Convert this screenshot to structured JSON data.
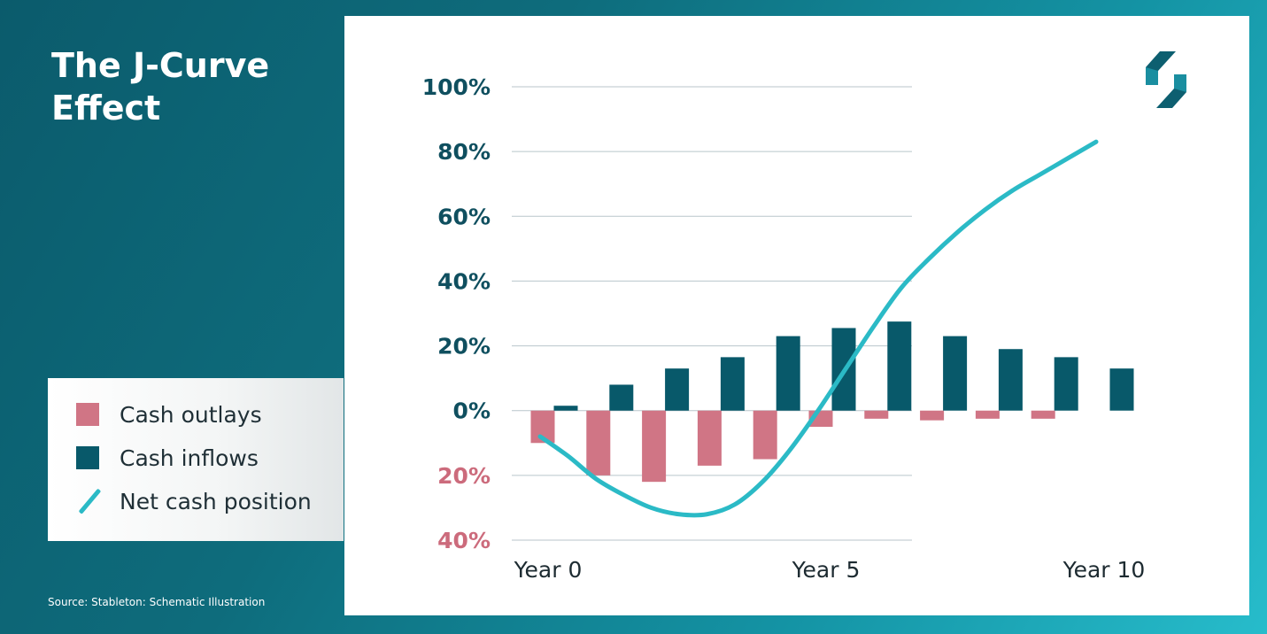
{
  "title": "The J-Curve Effect",
  "source": "Source: Stableton: Schematic Illustration",
  "logo_icon": "stableton-logo-icon",
  "colors": {
    "background_dark": "#0b5b6c",
    "background_light": "#27bccb",
    "outlays": "#d07585",
    "inflows": "#08596a",
    "net_line": "#2bbac6",
    "positive_tick": "#0f4f5f",
    "negative_tick": "#cc6b7c"
  },
  "legend": [
    {
      "label": "Cash outlays",
      "kind": "swatch",
      "color": "#d07585"
    },
    {
      "label": "Cash inflows",
      "kind": "swatch",
      "color": "#08596a"
    },
    {
      "label": "Net cash position",
      "kind": "line",
      "color": "#2bbac6"
    }
  ],
  "chart_data": {
    "type": "bar",
    "x_ticks": [
      {
        "x": 0,
        "label": "Year 0"
      },
      {
        "x": 5,
        "label": "Year 5"
      },
      {
        "x": 10,
        "label": "Year 10"
      }
    ],
    "y_ticks": [
      {
        "value": 100,
        "label": "100%"
      },
      {
        "value": 80,
        "label": "80%"
      },
      {
        "value": 60,
        "label": "60%"
      },
      {
        "value": 40,
        "label": "40%"
      },
      {
        "value": 20,
        "label": "20%"
      },
      {
        "value": 0,
        "label": "0%"
      },
      {
        "value": -20,
        "label": "20%"
      },
      {
        "value": -40,
        "label": "40%"
      }
    ],
    "ylim": [
      -40,
      100
    ],
    "xlim": [
      0,
      10
    ],
    "grid": true,
    "legend_position": "left",
    "series": [
      {
        "name": "Cash outlays",
        "kind": "bar",
        "x": [
          0,
          1,
          2,
          3,
          4,
          5,
          6,
          7,
          8,
          9
        ],
        "values": [
          -10,
          -20,
          -22,
          -17,
          -15,
          -5,
          -2.5,
          -3,
          -2.5,
          -2.5
        ]
      },
      {
        "name": "Cash inflows",
        "kind": "bar",
        "x": [
          0,
          1,
          2,
          3,
          4,
          5,
          6,
          7,
          8,
          9,
          10
        ],
        "values": [
          1.5,
          8,
          13,
          16.5,
          23,
          25.5,
          27.5,
          23,
          19,
          16.5,
          13
        ]
      },
      {
        "name": "Net cash position",
        "kind": "line",
        "x": [
          0,
          0.5,
          1,
          1.5,
          2,
          2.5,
          3,
          3.5,
          4,
          4.5,
          5,
          5.5,
          6,
          6.5,
          7,
          7.5,
          8,
          8.5,
          9,
          9.5,
          10
        ],
        "values": [
          -8,
          -14,
          -21,
          -26,
          -30,
          -32,
          -32,
          -29,
          -22,
          -12,
          0,
          13,
          26,
          38,
          47,
          55,
          62,
          68,
          73,
          78,
          83
        ]
      }
    ]
  }
}
